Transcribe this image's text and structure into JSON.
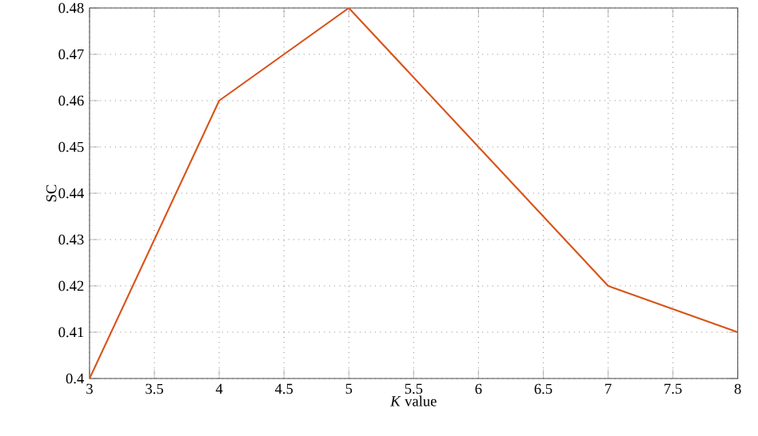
{
  "chart_data": {
    "type": "line",
    "xlabel": "*K* value",
    "ylabel": "SC",
    "x": [
      3,
      4,
      5,
      6,
      7,
      8
    ],
    "series": [
      {
        "color": "#d95319",
        "values": [
          0.4,
          0.46,
          0.48,
          0.45,
          0.42,
          0.41
        ]
      }
    ],
    "xlim": [
      3,
      8
    ],
    "ylim": [
      0.4,
      0.48
    ],
    "xticks": [
      3,
      3.5,
      4,
      4.5,
      5,
      5.5,
      6,
      6.5,
      7,
      7.5,
      8
    ],
    "yticks": [
      0.4,
      0.41,
      0.42,
      0.43,
      0.44,
      0.45,
      0.46,
      0.47,
      0.48
    ],
    "grid": true,
    "line_style": "solid",
    "marker": "none"
  }
}
